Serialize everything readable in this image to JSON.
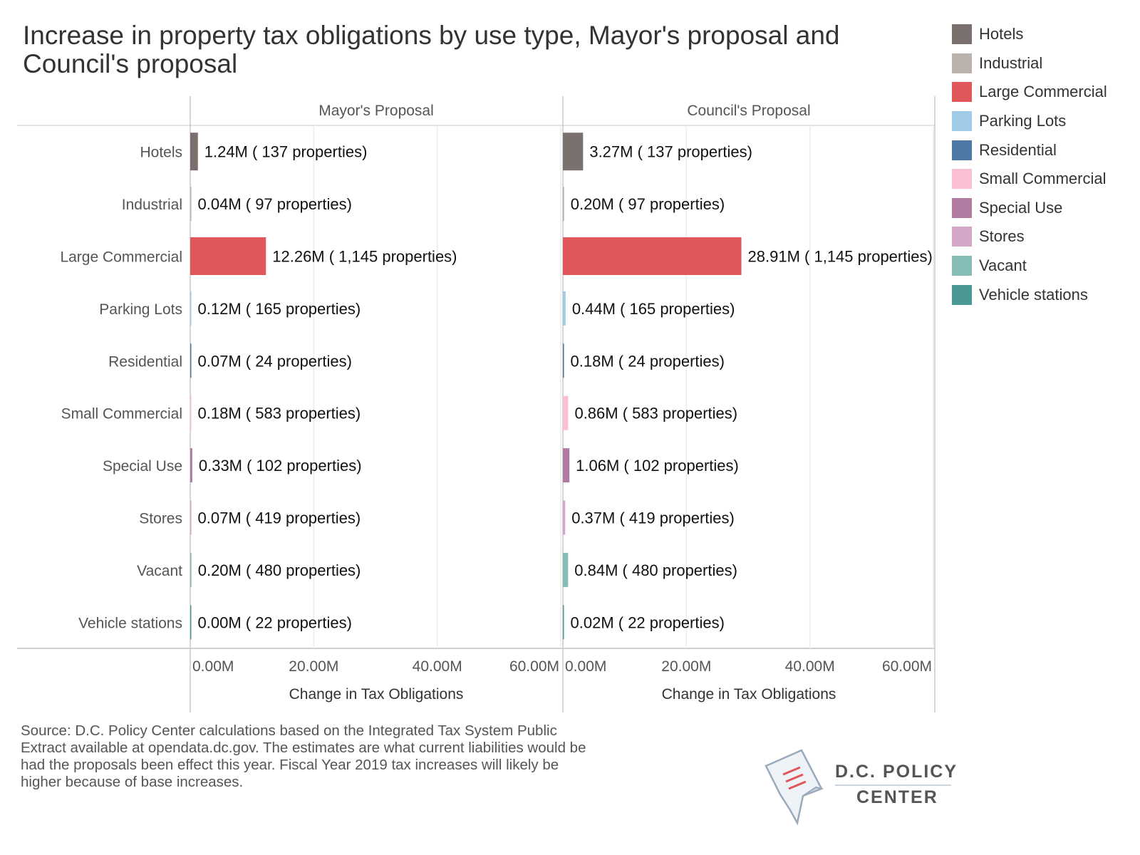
{
  "title": "Increase in property tax obligations by use type, Mayor's proposal and Council's proposal",
  "legend": {
    "items": [
      {
        "label": "Hotels",
        "color": "#7a706d"
      },
      {
        "label": "Industrial",
        "color": "#bbb2ad"
      },
      {
        "label": "Large Commercial",
        "color": "#e15759"
      },
      {
        "label": "Parking Lots",
        "color": "#a0cbe8"
      },
      {
        "label": "Residential",
        "color": "#4e79a7"
      },
      {
        "label": "Small Commercial",
        "color": "#fabfd2"
      },
      {
        "label": "Special Use",
        "color": "#b07aa1"
      },
      {
        "label": "Stores",
        "color": "#d4a6c8"
      },
      {
        "label": "Vacant",
        "color": "#86bcb6"
      },
      {
        "label": "Vehicle stations",
        "color": "#499894"
      }
    ]
  },
  "source": "Source: D.C. Policy Center calculations based on the Integrated Tax System Public Extract available at opendata.dc.gov. The estimates are what current liabilities would be had the proposals been effect this year. Fiscal Year 2019 tax increases will likely be higher because of base increases.",
  "logo": {
    "line1": "D.C. POLICY",
    "line2": "CENTER"
  },
  "chart_data": {
    "type": "bar",
    "orientation": "horizontal",
    "categories": [
      "Hotels",
      "Industrial",
      "Large Commercial",
      "Parking Lots",
      "Residential",
      "Small Commercial",
      "Special Use",
      "Stores",
      "Vacant",
      "Vehicle stations"
    ],
    "xlabel": "Change in Tax Obligations",
    "xlim": [
      0,
      60
    ],
    "xticks": [
      "0.00M",
      "20.00M",
      "40.00M",
      "60.00M"
    ],
    "grid": true,
    "panels": [
      {
        "name": "Mayor's Proposal",
        "values": [
          1.24,
          0.04,
          12.26,
          0.12,
          0.07,
          0.18,
          0.33,
          0.07,
          0.2,
          0.0
        ],
        "labels": [
          "1.24M ( 137 properties)",
          "0.04M ( 97 properties)",
          "12.26M ( 1,145 properties)",
          "0.12M ( 165 properties)",
          "0.07M ( 24 properties)",
          "0.18M ( 583 properties)",
          "0.33M ( 102 properties)",
          "0.07M ( 419 properties)",
          "0.20M ( 480 properties)",
          "0.00M ( 22 properties)"
        ]
      },
      {
        "name": "Council's Proposal",
        "values": [
          3.27,
          0.2,
          28.91,
          0.44,
          0.18,
          0.86,
          1.06,
          0.37,
          0.84,
          0.02
        ],
        "labels": [
          "3.27M ( 137 properties)",
          "0.20M ( 97 properties)",
          "28.91M ( 1,145 properties)",
          "0.44M ( 165 properties)",
          "0.18M ( 24 properties)",
          "0.86M ( 583 properties)",
          "1.06M ( 102 properties)",
          "0.37M ( 419 properties)",
          "0.84M ( 480 properties)",
          "0.02M ( 22 properties)"
        ]
      }
    ]
  }
}
